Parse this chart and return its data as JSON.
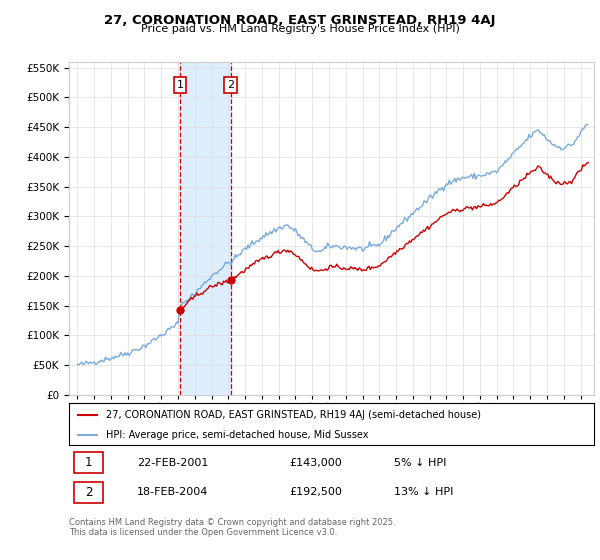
{
  "title": "27, CORONATION ROAD, EAST GRINSTEAD, RH19 4AJ",
  "subtitle": "Price paid vs. HM Land Registry's House Price Index (HPI)",
  "legend_property": "27, CORONATION ROAD, EAST GRINSTEAD, RH19 4AJ (semi-detached house)",
  "legend_hpi": "HPI: Average price, semi-detached house, Mid Sussex",
  "sale1_date": "22-FEB-2001",
  "sale1_price": 143000,
  "sale1_note": "5% ↓ HPI",
  "sale2_date": "18-FEB-2004",
  "sale2_price": 192500,
  "sale2_note": "13% ↓ HPI",
  "footer": "Contains HM Land Registry data © Crown copyright and database right 2025.\nThis data is licensed under the Open Government Licence v3.0.",
  "property_color": "#cc0000",
  "hpi_color": "#7aaadd",
  "highlight_color": "#ddeeff",
  "sale1_x": 2001.13,
  "sale2_x": 2004.13,
  "ylim_min": 0,
  "ylim_max": 560000,
  "xlim_min": 1994.5,
  "xlim_max": 2025.8,
  "hpi_keypoints": [
    [
      1995.0,
      50000
    ],
    [
      1996.0,
      55000
    ],
    [
      1997.0,
      62000
    ],
    [
      1998.0,
      70000
    ],
    [
      1999.0,
      82000
    ],
    [
      2000.0,
      100000
    ],
    [
      2001.0,
      120000
    ],
    [
      2001.13,
      150000
    ],
    [
      2002.0,
      170000
    ],
    [
      2003.0,
      200000
    ],
    [
      2004.0,
      222000
    ],
    [
      2004.13,
      222000
    ],
    [
      2005.0,
      245000
    ],
    [
      2006.0,
      265000
    ],
    [
      2007.0,
      280000
    ],
    [
      2007.5,
      285000
    ],
    [
      2008.0,
      275000
    ],
    [
      2009.0,
      245000
    ],
    [
      2009.5,
      240000
    ],
    [
      2010.0,
      250000
    ],
    [
      2011.0,
      248000
    ],
    [
      2012.0,
      245000
    ],
    [
      2013.0,
      252000
    ],
    [
      2014.0,
      280000
    ],
    [
      2015.0,
      305000
    ],
    [
      2016.0,
      330000
    ],
    [
      2017.0,
      355000
    ],
    [
      2018.0,
      365000
    ],
    [
      2019.0,
      368000
    ],
    [
      2020.0,
      375000
    ],
    [
      2021.0,
      405000
    ],
    [
      2022.0,
      435000
    ],
    [
      2022.5,
      445000
    ],
    [
      2023.0,
      430000
    ],
    [
      2023.5,
      418000
    ],
    [
      2024.0,
      415000
    ],
    [
      2024.5,
      420000
    ],
    [
      2025.0,
      440000
    ],
    [
      2025.4,
      455000
    ]
  ],
  "prop_keypoints": [
    [
      2001.13,
      143000
    ],
    [
      2002.0,
      165000
    ],
    [
      2003.0,
      182000
    ],
    [
      2004.13,
      192500
    ],
    [
      2005.0,
      210000
    ],
    [
      2006.0,
      228000
    ],
    [
      2007.0,
      240000
    ],
    [
      2007.5,
      244000
    ],
    [
      2008.0,
      236000
    ],
    [
      2009.0,
      210000
    ],
    [
      2009.5,
      208000
    ],
    [
      2010.0,
      215000
    ],
    [
      2011.0,
      213000
    ],
    [
      2012.0,
      210000
    ],
    [
      2013.0,
      217000
    ],
    [
      2014.0,
      240000
    ],
    [
      2015.0,
      262000
    ],
    [
      2016.0,
      283000
    ],
    [
      2017.0,
      305000
    ],
    [
      2018.0,
      313000
    ],
    [
      2019.0,
      316000
    ],
    [
      2020.0,
      322000
    ],
    [
      2021.0,
      348000
    ],
    [
      2022.0,
      373000
    ],
    [
      2022.5,
      382000
    ],
    [
      2023.0,
      370000
    ],
    [
      2023.5,
      358000
    ],
    [
      2024.0,
      355000
    ],
    [
      2024.5,
      360000
    ],
    [
      2025.0,
      378000
    ],
    [
      2025.4,
      390000
    ]
  ]
}
